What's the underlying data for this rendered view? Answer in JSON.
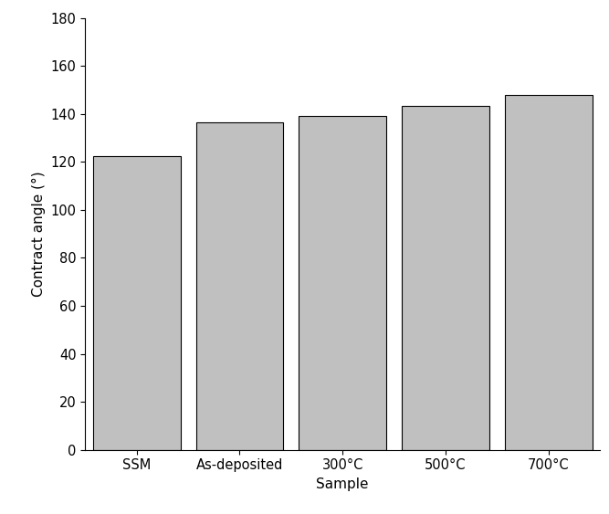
{
  "chart_data": {
    "type": "bar",
    "categories": [
      "SSM",
      "As-deposited",
      "300°C",
      "500°C",
      "700°C"
    ],
    "values": [
      122.5,
      136.5,
      139,
      143.5,
      148
    ],
    "color": "#c0c0c0",
    "x_label": "Sample",
    "y_label": "Contract angle (°)",
    "ylim": [
      0,
      180
    ],
    "yticks": [
      0,
      20,
      40,
      60,
      80,
      100,
      120,
      140,
      160,
      180
    ],
    "grid": false
  }
}
